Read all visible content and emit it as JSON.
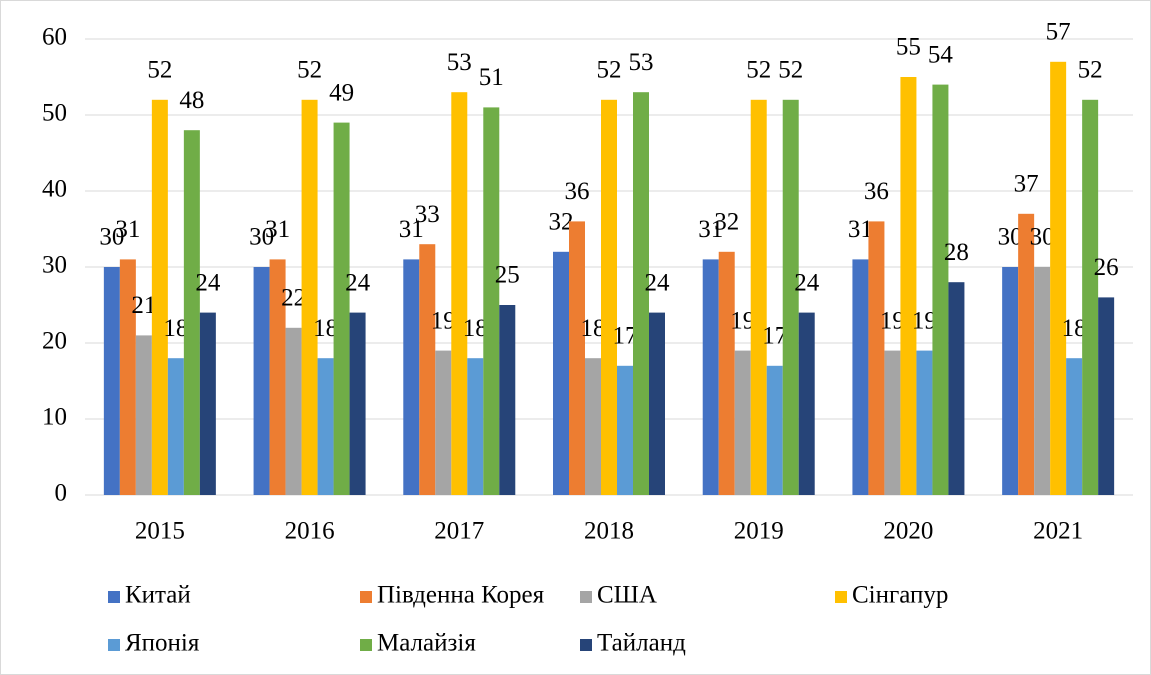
{
  "chart_data": {
    "type": "bar",
    "categories": [
      "2015",
      "2016",
      "2017",
      "2018",
      "2019",
      "2020",
      "2021"
    ],
    "series": [
      {
        "name": "Китай",
        "color": "#4472c4",
        "values": [
          30,
          30,
          31,
          32,
          31,
          31,
          30
        ]
      },
      {
        "name": "Південна Корея",
        "color": "#ed7d31",
        "values": [
          31,
          31,
          33,
          36,
          32,
          36,
          37
        ]
      },
      {
        "name": "США",
        "color": "#a5a5a5",
        "values": [
          21,
          22,
          19,
          18,
          19,
          19,
          30
        ]
      },
      {
        "name": "Сінгапур",
        "color": "#ffc000",
        "values": [
          52,
          52,
          53,
          52,
          52,
          55,
          57
        ]
      },
      {
        "name": "Японія",
        "color": "#5b9bd5",
        "values": [
          18,
          18,
          18,
          17,
          17,
          19,
          18
        ]
      },
      {
        "name": "Малайзія",
        "color": "#70ad47",
        "values": [
          48,
          49,
          51,
          53,
          52,
          54,
          52
        ]
      },
      {
        "name": "Тайланд",
        "color": "#264478",
        "values": [
          24,
          24,
          25,
          24,
          24,
          28,
          26
        ]
      }
    ],
    "ylim": [
      0,
      60
    ],
    "yticks": [
      0,
      10,
      20,
      30,
      40,
      50,
      60
    ],
    "grid": true,
    "legend": "bottom"
  }
}
